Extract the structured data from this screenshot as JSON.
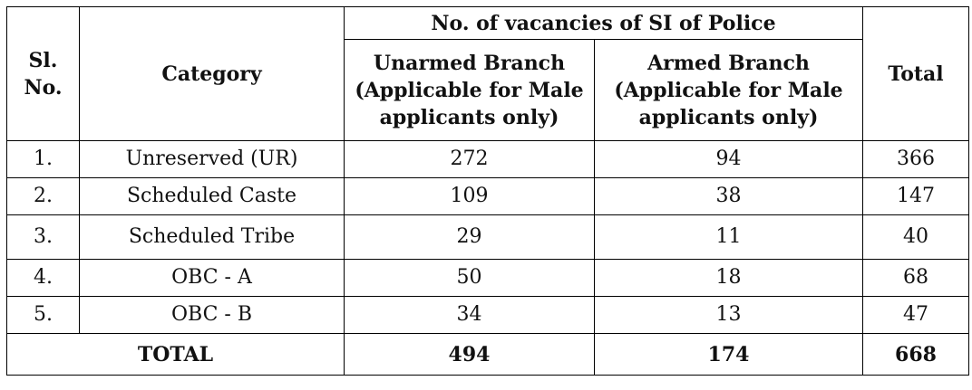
{
  "table": {
    "header": {
      "sl_no_line1": "Sl.",
      "sl_no_line2": "No.",
      "category": "Category",
      "group_title": "No. of vacancies of SI of Police",
      "unarmed_line1": "Unarmed Branch",
      "unarmed_line2": "(Applicable for Male",
      "unarmed_line3": "applicants only)",
      "armed_line1": "Armed Branch",
      "armed_line2": "(Applicable for Male",
      "armed_line3": "applicants only)",
      "total": "Total"
    },
    "rows": [
      {
        "sl": "1.",
        "category": "Unreserved (UR)",
        "unarmed": "272",
        "armed": "94",
        "total": "366"
      },
      {
        "sl": "2.",
        "category": "Scheduled Caste",
        "unarmed": "109",
        "armed": "38",
        "total": "147"
      },
      {
        "sl": "3.",
        "category": "Scheduled Tribe",
        "unarmed": "29",
        "armed": "11",
        "total": "40"
      },
      {
        "sl": "4.",
        "category": "OBC - A",
        "unarmed": "50",
        "armed": "18",
        "total": "68"
      },
      {
        "sl": "5.",
        "category": "OBC - B",
        "unarmed": "34",
        "armed": "13",
        "total": "47"
      }
    ],
    "footer": {
      "label": "TOTAL",
      "unarmed": "494",
      "armed": "174",
      "total": "668"
    }
  }
}
